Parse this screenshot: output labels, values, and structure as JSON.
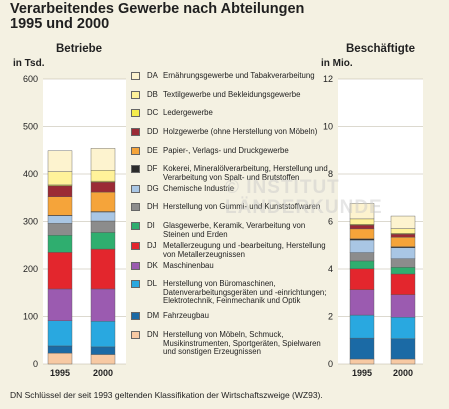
{
  "title_line1": "Verarbeitendes Gewerbe nach Abteilungen",
  "title_line2": "1995 und 2000",
  "watermark_line1": "© INSTITUT",
  "watermark_line2": "LÄNDERKUNDE",
  "footnote": "DN  Schlüssel der seit 1993 geltenden Klassifikation der Wirtschaftszweige (WZ93).",
  "legend": [
    {
      "code": "DA",
      "label": "Ernährungsgewerbe und Tabakverarbeitung",
      "color": "#fdf3cf"
    },
    {
      "code": "DB",
      "label": "Textilgewerbe und Bekleidungsgewerbe",
      "color": "#fff29a"
    },
    {
      "code": "DC",
      "label": "Ledergewerbe",
      "color": "#f5ec4c"
    },
    {
      "code": "DD",
      "label": "Holzgewerbe (ohne Herstellung von Möbeln)",
      "color": "#9b2a35"
    },
    {
      "code": "DE",
      "label": "Papier-, Verlags- und Druckgewerbe",
      "color": "#f5a43a"
    },
    {
      "code": "DF",
      "label": "Kokerei, Mineralölverarbeitung, Herstellung und Verarbeitung von Spalt- und Brutstoffen",
      "color": "#2b2b2b"
    },
    {
      "code": "DG",
      "label": "Chemische Industrie",
      "color": "#a9c6e4"
    },
    {
      "code": "DH",
      "label": "Herstellung von Gummi- und Kunststoffwaren",
      "color": "#8c8c8c"
    },
    {
      "code": "DI",
      "label": "Glasgewerbe, Keramik, Verarbeitung von Steinen und Erden",
      "color": "#2fae6f"
    },
    {
      "code": "DJ",
      "label": "Metallerzeugung und -bearbeitung, Herstellung von Metallerzeugnissen",
      "color": "#e3262d"
    },
    {
      "code": "DK",
      "label": "Maschinenbau",
      "color": "#9b5bb0"
    },
    {
      "code": "DL",
      "label": "Herstellung von Büromaschinen, Datenverarbeitungsgeräten und -einrichtungen; Elektrotechnik, Feinmechanik und Optik",
      "color": "#29a8e0"
    },
    {
      "code": "DM",
      "label": "Fahrzeugbau",
      "color": "#1b6aa5"
    },
    {
      "code": "DN",
      "label": "Herstellung von Möbeln, Schmuck, Musikinstrumenten, Sportgeräten, Spielwaren und sonstigen Erzeugnissen",
      "color": "#f7c9a3"
    }
  ],
  "chart_data": [
    {
      "type": "bar",
      "title": "Betriebe",
      "ylabel": "in Tsd.",
      "ylim": [
        0,
        600
      ],
      "yticks": [
        0,
        100,
        200,
        300,
        400,
        500,
        600
      ],
      "categories": [
        "1995",
        "2000"
      ],
      "series": [
        {
          "name": "DA",
          "values": [
            44,
            46
          ]
        },
        {
          "name": "DB",
          "values": [
            28,
            23
          ]
        },
        {
          "name": "DC",
          "values": [
            2,
            2
          ]
        },
        {
          "name": "DD",
          "values": [
            23,
            21
          ]
        },
        {
          "name": "DE",
          "values": [
            39,
            41
          ]
        },
        {
          "name": "DF",
          "values": [
            1,
            1
          ]
        },
        {
          "name": "DG",
          "values": [
            16,
            19
          ]
        },
        {
          "name": "DH",
          "values": [
            25,
            24
          ]
        },
        {
          "name": "DI",
          "values": [
            36,
            35
          ]
        },
        {
          "name": "DJ",
          "values": [
            77,
            84
          ]
        },
        {
          "name": "DK",
          "values": [
            67,
            68
          ]
        },
        {
          "name": "DL",
          "values": [
            53,
            54
          ]
        },
        {
          "name": "DM",
          "values": [
            15,
            16
          ]
        },
        {
          "name": "DN",
          "values": [
            23,
            20
          ]
        }
      ]
    },
    {
      "type": "bar",
      "title": "Beschäftigte",
      "ylabel": "in Mio.",
      "ylim": [
        0,
        12
      ],
      "yticks": [
        0,
        2,
        4,
        6,
        8,
        10,
        12
      ],
      "categories": [
        "1995",
        "2000"
      ],
      "series": [
        {
          "name": "DA",
          "values": [
            0.65,
            0.53
          ]
        },
        {
          "name": "DB",
          "values": [
            0.23,
            0.2
          ]
        },
        {
          "name": "DC",
          "values": [
            0.03,
            0.03
          ]
        },
        {
          "name": "DD",
          "values": [
            0.16,
            0.13
          ]
        },
        {
          "name": "DE",
          "values": [
            0.42,
            0.4
          ]
        },
        {
          "name": "DF",
          "values": [
            0.05,
            0.04
          ]
        },
        {
          "name": "DG",
          "values": [
            0.53,
            0.47
          ]
        },
        {
          "name": "DH",
          "values": [
            0.35,
            0.36
          ]
        },
        {
          "name": "DI",
          "values": [
            0.33,
            0.28
          ]
        },
        {
          "name": "DJ",
          "values": [
            0.88,
            0.87
          ]
        },
        {
          "name": "DK",
          "values": [
            1.07,
            0.95
          ]
        },
        {
          "name": "DL",
          "values": [
            0.97,
            0.91
          ]
        },
        {
          "name": "DM",
          "values": [
            0.88,
            0.85
          ]
        },
        {
          "name": "DN",
          "values": [
            0.21,
            0.21
          ]
        }
      ]
    }
  ]
}
